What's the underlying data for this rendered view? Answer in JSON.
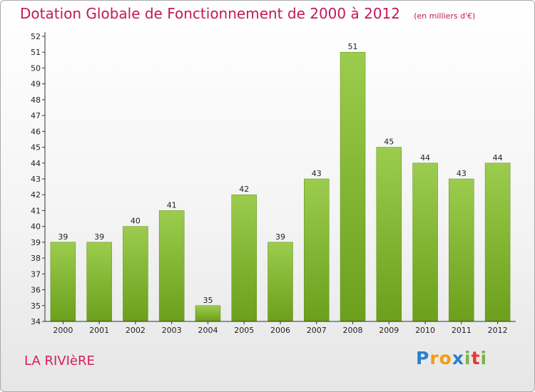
{
  "chart_data": {
    "type": "bar",
    "title": "Dotation Globale de Fonctionnement de 2000 à 2012",
    "subtitle": "(en milliers d'€)",
    "categories": [
      "2000",
      "2001",
      "2002",
      "2003",
      "2004",
      "2005",
      "2006",
      "2007",
      "2008",
      "2009",
      "2010",
      "2011",
      "2012"
    ],
    "values": [
      39,
      39,
      40,
      41,
      35,
      42,
      39,
      43,
      51,
      45,
      44,
      43,
      44
    ],
    "ylim": [
      34,
      52
    ],
    "yticks": [
      34,
      35,
      36,
      37,
      38,
      39,
      40,
      41,
      42,
      43,
      44,
      45,
      46,
      47,
      48,
      49,
      50,
      51,
      52
    ],
    "xlabel": "",
    "ylabel": "",
    "grid": false,
    "legend": "none",
    "bar_color_top": "#9ccc4d",
    "bar_color_bottom": "#6b9f1c"
  },
  "footer": {
    "commune": "LA RIVIèRE",
    "logo_letters": [
      {
        "ch": "P",
        "color": "#2a7fd0"
      },
      {
        "ch": "r",
        "color": "#f39c12"
      },
      {
        "ch": "o",
        "color": "#f39c12"
      },
      {
        "ch": "x",
        "color": "#2a7fd0"
      },
      {
        "ch": "i",
        "color": "#7cb342"
      },
      {
        "ch": "t",
        "color": "#e53935"
      },
      {
        "ch": "i",
        "color": "#7cb342"
      }
    ]
  }
}
